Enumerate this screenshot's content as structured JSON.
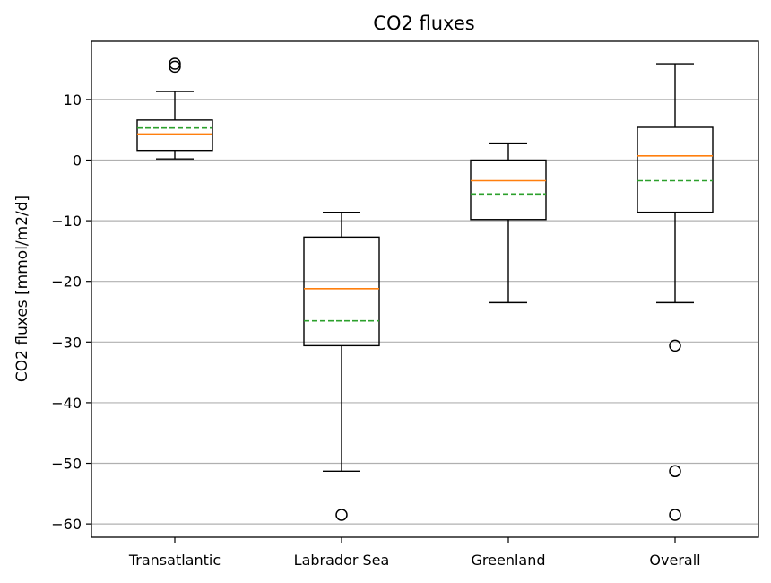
{
  "chart_data": {
    "type": "box",
    "title": "CO2 fluxes",
    "ylabel": "CO2 fluxes [mmol/m2/d]",
    "xlabel": "",
    "ylim": [
      -62.2,
      19.6
    ],
    "yticks": [
      10,
      0,
      -10,
      -20,
      -30,
      -40,
      -50,
      -60
    ],
    "ytick_labels": [
      "10",
      "0",
      "−10",
      "−20",
      "−30",
      "−40",
      "−50",
      "−60"
    ],
    "grid": "horizontal",
    "categories": [
      "Transatlantic",
      "Labrador Sea",
      "Greenland",
      "Overall"
    ],
    "boxes": [
      {
        "whisker_low": 0.2,
        "q1": 1.6,
        "median": 4.3,
        "mean": 5.3,
        "q3": 6.6,
        "whisker_high": 11.3,
        "outliers": [
          15.4,
          15.9
        ]
      },
      {
        "whisker_low": -51.3,
        "q1": -30.6,
        "median": -21.2,
        "mean": -26.5,
        "q3": -12.7,
        "whisker_high": -8.6,
        "outliers": [
          -58.5
        ]
      },
      {
        "whisker_low": -23.5,
        "q1": -9.8,
        "median": -3.4,
        "mean": -5.6,
        "q3": 0.0,
        "whisker_high": 2.8,
        "outliers": []
      },
      {
        "whisker_low": -23.5,
        "q1": -8.6,
        "median": 0.7,
        "mean": -3.4,
        "q3": 5.4,
        "whisker_high": 15.9,
        "outliers": [
          -30.6,
          -51.3,
          -58.5
        ]
      }
    ],
    "colors": {
      "box": "#000000",
      "median": "#ff7f0e",
      "mean": "#2ca02c",
      "grid": "#b0b0b0"
    }
  }
}
